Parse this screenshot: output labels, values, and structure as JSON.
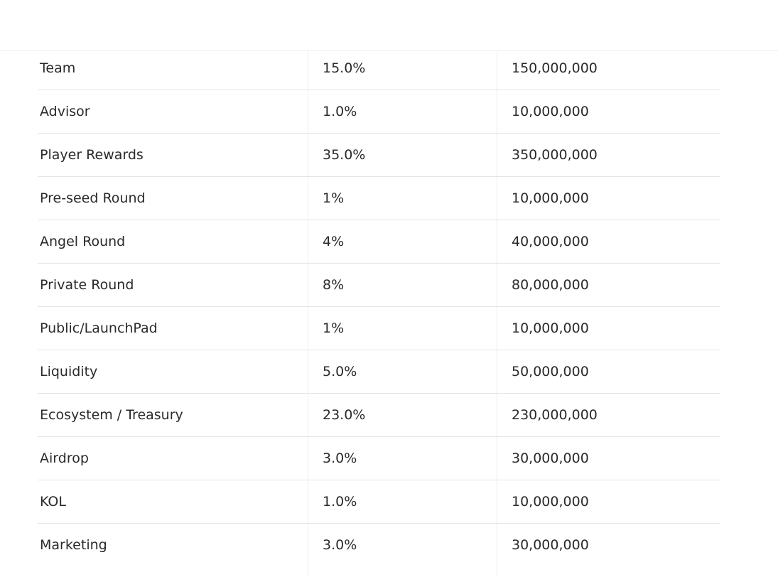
{
  "table": {
    "rows": [
      [
        "Team",
        "15.0%",
        "150,000,000"
      ],
      [
        "Advisor",
        "1.0%",
        "10,000,000"
      ],
      [
        "Player Rewards",
        "35.0%",
        "350,000,000"
      ],
      [
        "Pre-seed Round",
        "1%",
        "10,000,000"
      ],
      [
        "Angel Round",
        "4%",
        "40,000,000"
      ],
      [
        "Private Round",
        "8%",
        "80,000,000"
      ],
      [
        "Public/LaunchPad",
        "1%",
        "10,000,000"
      ],
      [
        "Liquidity",
        "5.0%",
        "50,000,000"
      ],
      [
        "Ecosystem / Treasury",
        "23.0%",
        "230,000,000"
      ],
      [
        "Airdrop",
        "3.0%",
        "30,000,000"
      ],
      [
        "KOL",
        "1.0%",
        "10,000,000"
      ],
      [
        "Marketing",
        "3.0%",
        "30,000,000"
      ]
    ]
  }
}
